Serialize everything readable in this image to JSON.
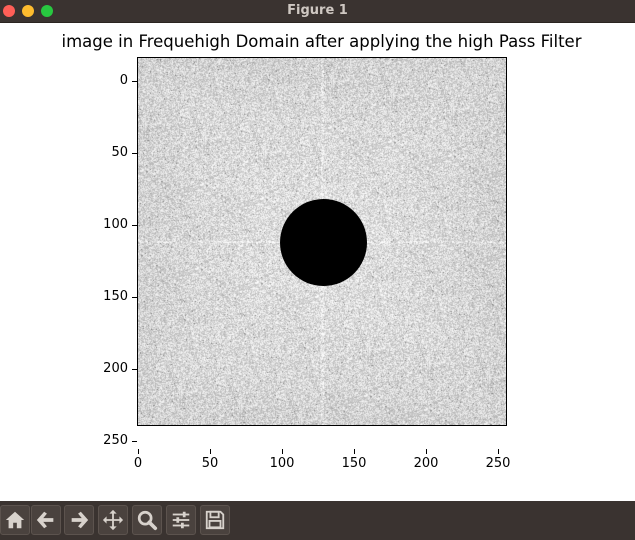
{
  "window": {
    "title": "Figure 1"
  },
  "plot": {
    "title": "image in Frequehigh Domain after applying the high Pass Filter",
    "y_ticks": [
      "0",
      "50",
      "100",
      "150",
      "200",
      "250"
    ],
    "x_ticks": [
      "0",
      "50",
      "100",
      "150",
      "200",
      "250"
    ]
  },
  "toolbar": {
    "buttons": [
      {
        "icon": "home-icon"
      },
      {
        "icon": "back-arrow-icon"
      },
      {
        "icon": "forward-arrow-icon"
      },
      {
        "icon": "pan-move-icon"
      },
      {
        "icon": "zoom-magnifier-icon"
      },
      {
        "icon": "configure-subplots-icon"
      },
      {
        "icon": "save-floppy-icon"
      }
    ]
  },
  "colors": {
    "titlebar": "#3a3330",
    "image_background": "#dcdcdc",
    "mask": "#000000"
  }
}
